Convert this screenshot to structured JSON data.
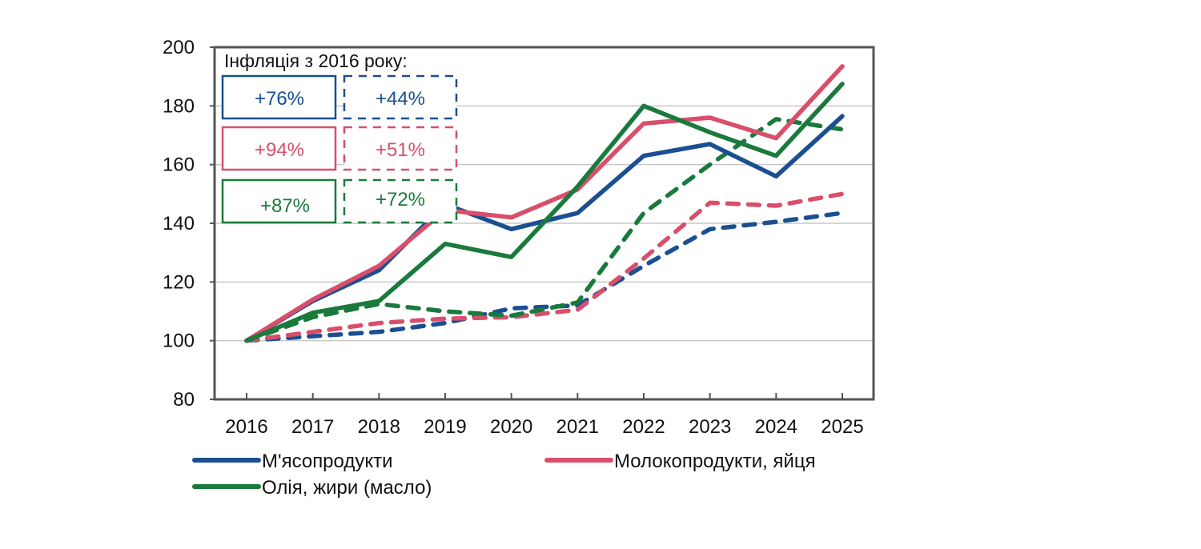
{
  "chart_data": {
    "type": "line",
    "title": "",
    "xlabel": "",
    "ylabel": "",
    "x": [
      "2016",
      "2017",
      "2018",
      "2019",
      "2020",
      "2021",
      "2022",
      "2023",
      "2024",
      "2025"
    ],
    "ylim": [
      80,
      200
    ],
    "yticks": [
      80,
      100,
      120,
      140,
      160,
      180,
      200
    ],
    "grid": "horizontal",
    "series": [
      {
        "name": "М'ясопродукти",
        "style": "solid",
        "color": "#1b4f91",
        "values": [
          100,
          113.5,
          124,
          146.5,
          138,
          143.5,
          163,
          167,
          156,
          176.5
        ]
      },
      {
        "name": "Молокопродукти, яйця",
        "style": "solid",
        "color": "#d94f6b",
        "values": [
          100,
          114,
          125.5,
          144.5,
          142,
          151.5,
          174,
          176,
          169,
          193.5
        ]
      },
      {
        "name": "Олія, жири (масло)",
        "style": "solid",
        "color": "#1a7a3c",
        "values": [
          100,
          109.5,
          113.5,
          133,
          128.5,
          152.5,
          180,
          171,
          163,
          187.5
        ]
      },
      {
        "name": "М'ясопродукти (dashed)",
        "style": "dashed",
        "color": "#1b4f91",
        "values": [
          100,
          101.5,
          103,
          106,
          111,
          112,
          125.5,
          138,
          140.5,
          143.5
        ]
      },
      {
        "name": "Молокопродукти, яйця (dashed)",
        "style": "dashed",
        "color": "#d94f6b",
        "values": [
          100,
          103,
          106,
          107.5,
          108,
          110.5,
          128,
          147,
          146,
          150
        ]
      },
      {
        "name": "Олія, жири (масло) (dashed)",
        "style": "dashed",
        "color": "#1a7a3c",
        "values": [
          100,
          108,
          112.5,
          110,
          108.5,
          113,
          143.5,
          160,
          175.5,
          172
        ]
      }
    ],
    "legend": {
      "placement": "bottom",
      "entries": [
        {
          "label": "М'ясопродукти",
          "color": "#1b4f91"
        },
        {
          "label": "Молокопродукти, яйця",
          "color": "#d94f6b"
        },
        {
          "label": "Олія, жири (масло)",
          "color": "#1a7a3c"
        }
      ]
    },
    "annotation": {
      "title": "Інфляція з 2016 року:",
      "rows": [
        {
          "color": "#1b4f91",
          "solid": "+76%",
          "dashed": "+44%"
        },
        {
          "color": "#d94f6b",
          "solid": "+94%",
          "dashed": "+51%"
        },
        {
          "color": "#1a7a3c",
          "solid": "+87%",
          "dashed": "+72%"
        }
      ]
    }
  }
}
